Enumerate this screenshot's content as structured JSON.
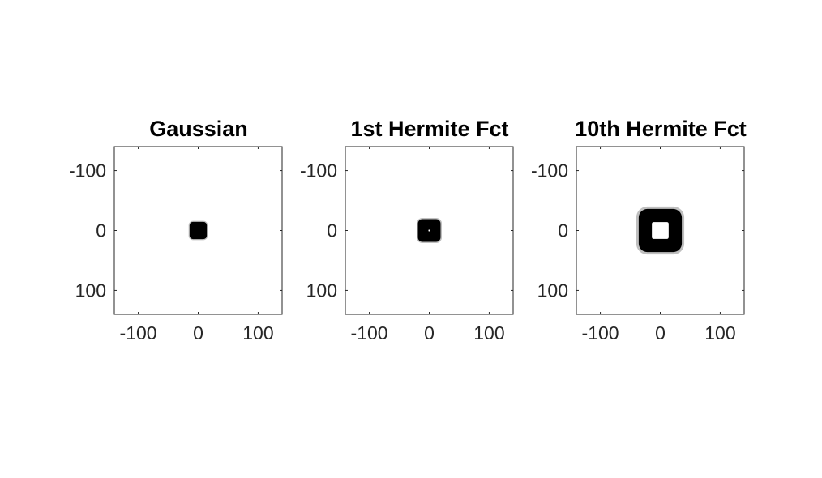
{
  "chart_data": [
    {
      "type": "heatmap",
      "title": "Gaussian",
      "xlabel": "",
      "ylabel": "",
      "xlim": [
        -140,
        140
      ],
      "ylim": [
        -140,
        140
      ],
      "y_direction": "reversed",
      "xticks": [
        -100,
        0,
        100
      ],
      "yticks": [
        -100,
        0,
        100
      ],
      "xtick_labels": [
        "-100",
        "0",
        "100"
      ],
      "ytick_labels": [
        "-100",
        "0",
        "100"
      ],
      "grid": false,
      "colormap": "gray-inverted",
      "pattern": "filled-rounded-square",
      "outer_half_width": 16,
      "inner_half_width": 0
    },
    {
      "type": "heatmap",
      "title": "1st Hermite Fct",
      "xlabel": "",
      "ylabel": "",
      "xlim": [
        -140,
        140
      ],
      "ylim": [
        -140,
        140
      ],
      "y_direction": "reversed",
      "xticks": [
        -100,
        0,
        100
      ],
      "yticks": [
        -100,
        0,
        100
      ],
      "xtick_labels": [
        "-100",
        "0",
        "100"
      ],
      "ytick_labels": [
        "-100",
        "0",
        "100"
      ],
      "grid": false,
      "colormap": "gray-inverted",
      "pattern": "rounded-square-ring",
      "outer_half_width": 21,
      "inner_half_width": 1
    },
    {
      "type": "heatmap",
      "title": "10th Hermite Fct",
      "xlabel": "",
      "ylabel": "",
      "xlim": [
        -140,
        140
      ],
      "ylim": [
        -140,
        140
      ],
      "y_direction": "reversed",
      "xticks": [
        -100,
        0,
        100
      ],
      "yticks": [
        -100,
        0,
        100
      ],
      "xtick_labels": [
        "-100",
        "0",
        "100"
      ],
      "ytick_labels": [
        "-100",
        "0",
        "100"
      ],
      "grid": false,
      "colormap": "gray-inverted",
      "pattern": "rounded-square-ring",
      "outer_half_width": 40,
      "inner_half_width": 14
    }
  ]
}
